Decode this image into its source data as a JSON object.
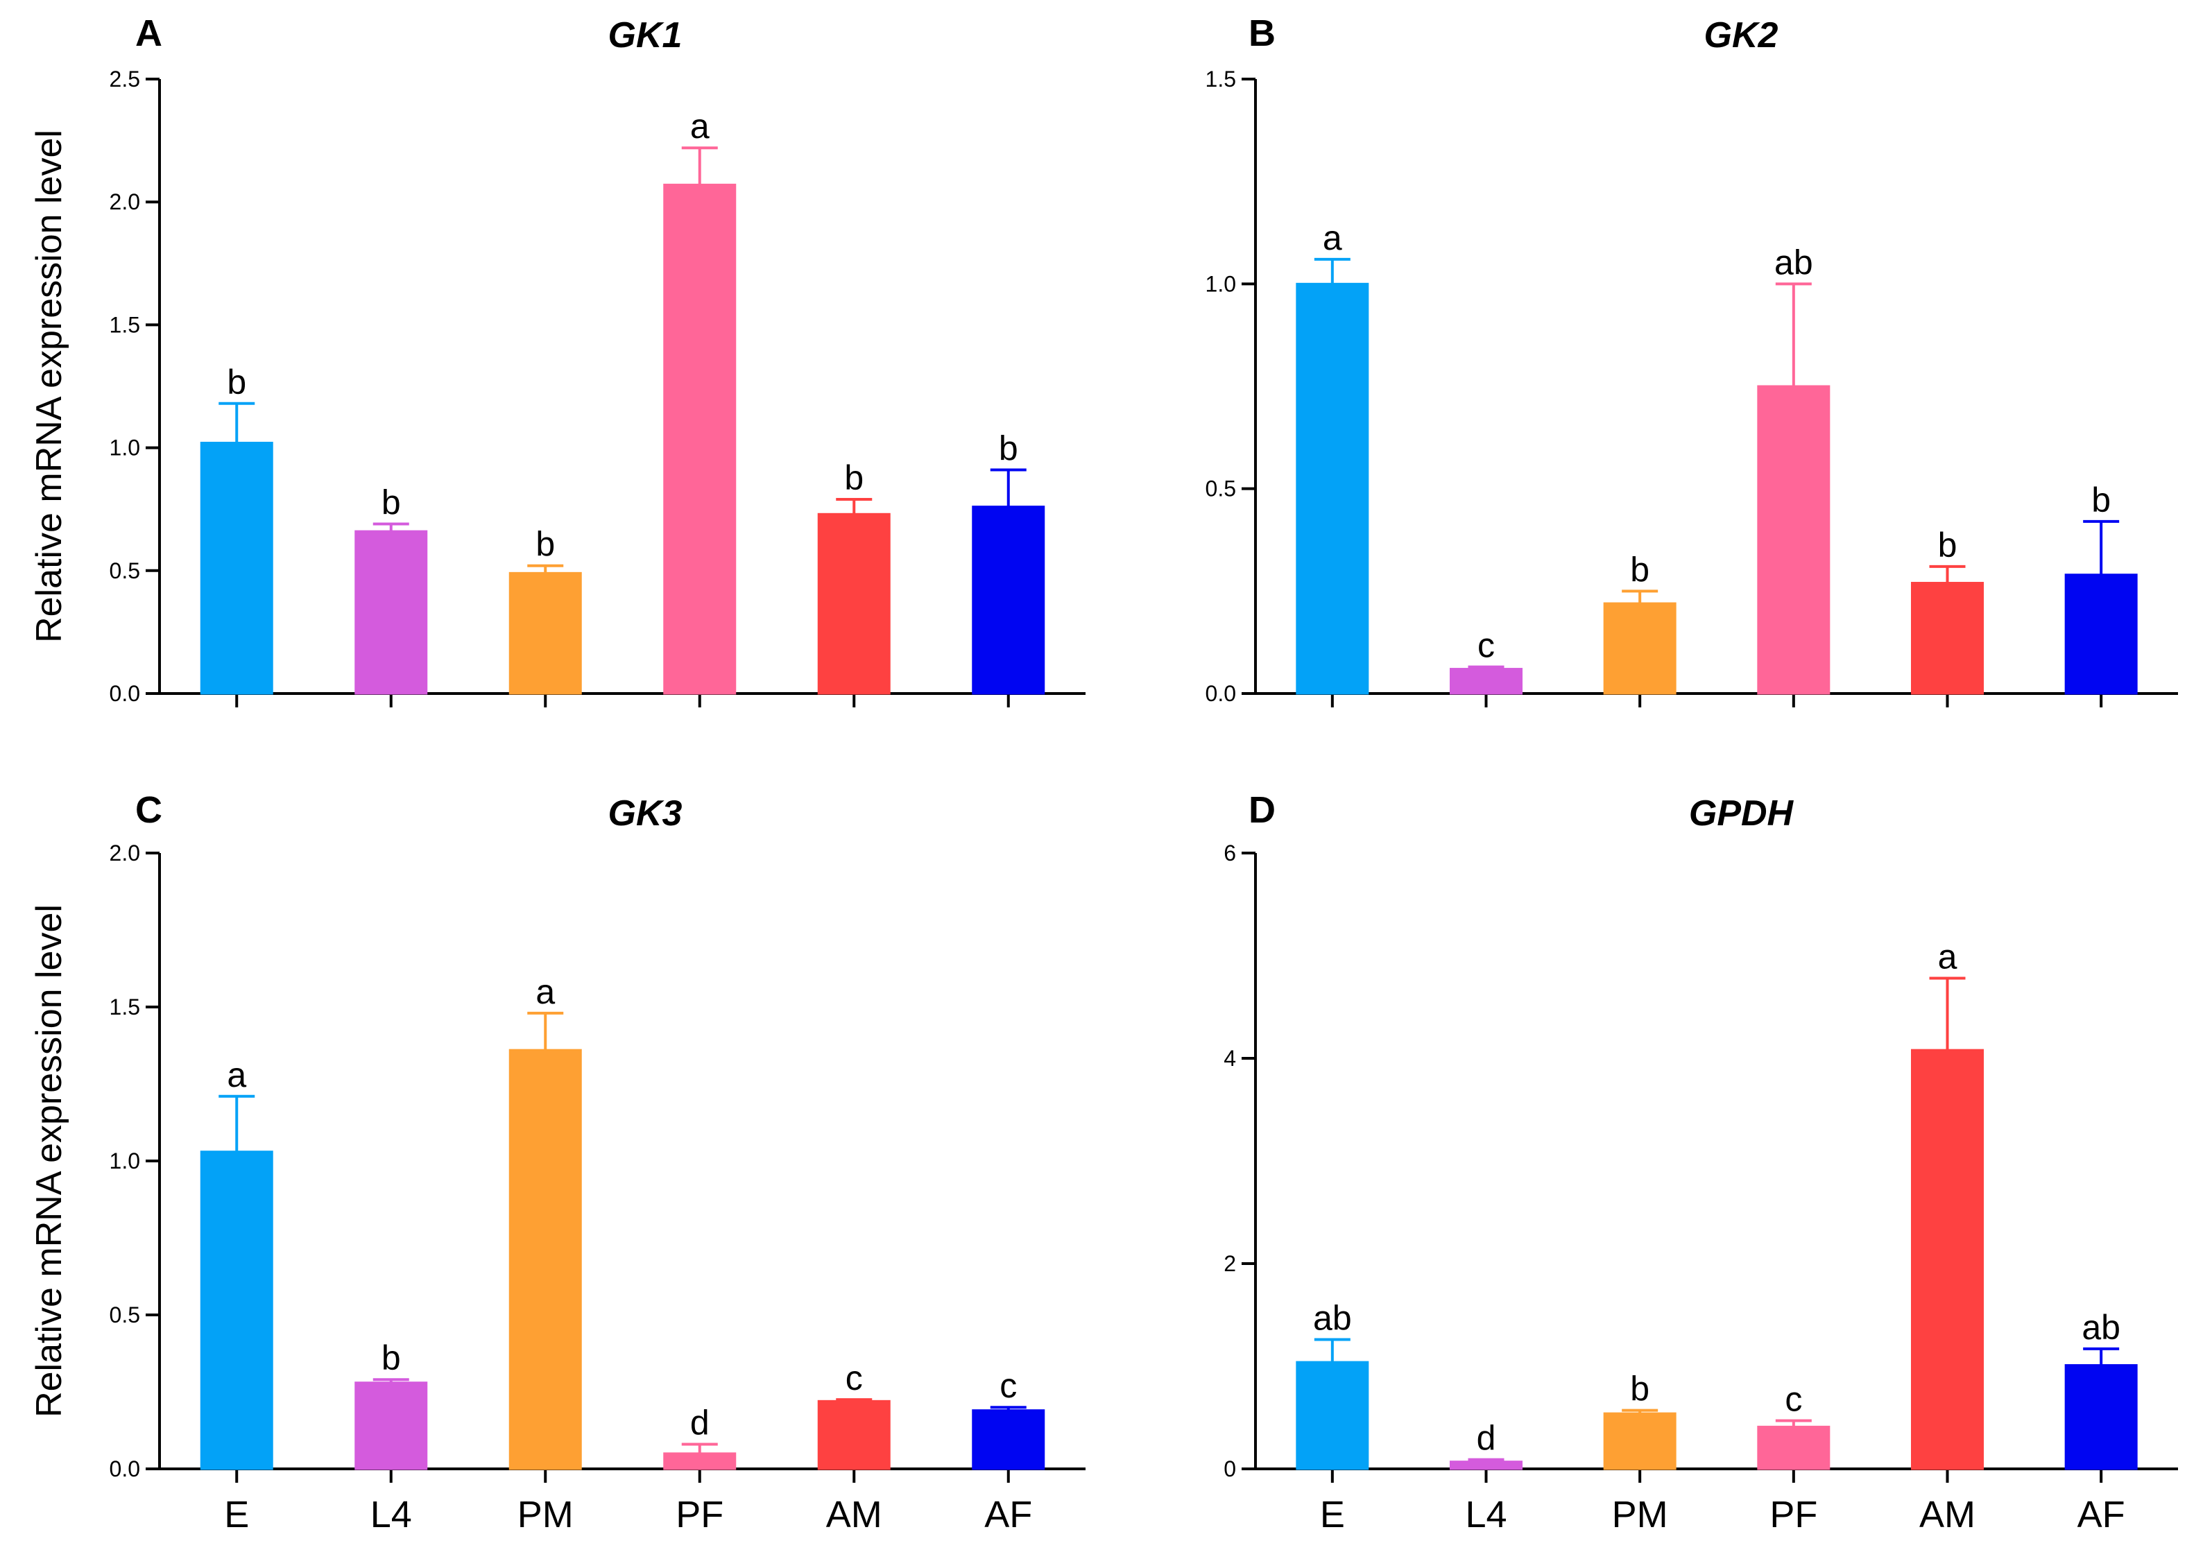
{
  "figure": {
    "y_axis_label": "Relative mRNA expression level",
    "categories": [
      "E",
      "L4",
      "PM",
      "PF",
      "AM",
      "AF"
    ],
    "colors": {
      "E": "#03A2F7",
      "L4": "#D45BDD",
      "PM": "#FEA033",
      "PF": "#FF6698",
      "AM": "#FE4141",
      "AF": "#0005F2"
    }
  },
  "chart_data": [
    {
      "panel": "A",
      "type": "bar",
      "title": "GK1",
      "ylabel": "Relative mRNA expression level",
      "xlabel": "",
      "categories": [
        "E",
        "L4",
        "PM",
        "PF",
        "AM",
        "AF"
      ],
      "values": [
        1.02,
        0.66,
        0.49,
        2.07,
        0.73,
        0.76
      ],
      "errors": [
        0.16,
        0.03,
        0.03,
        0.15,
        0.06,
        0.15
      ],
      "significance": [
        "b",
        "b",
        "b",
        "a",
        "b",
        "b"
      ],
      "ylim": [
        0,
        2.5
      ],
      "yticks": [
        0.0,
        0.5,
        1.0,
        1.5,
        2.0,
        2.5
      ],
      "ytick_labels": [
        "0.0",
        "0.5",
        "1.0",
        "1.5",
        "2.0",
        "2.5"
      ],
      "show_xtick_labels": false,
      "grid": false
    },
    {
      "panel": "B",
      "type": "bar",
      "title": "GK2",
      "ylabel": "",
      "xlabel": "",
      "categories": [
        "E",
        "L4",
        "PM",
        "PF",
        "AM",
        "AF"
      ],
      "values": [
        1.0,
        0.06,
        0.22,
        0.75,
        0.27,
        0.29
      ],
      "errors": [
        0.06,
        0.005,
        0.03,
        0.25,
        0.04,
        0.13
      ],
      "significance": [
        "a",
        "c",
        "b",
        "ab",
        "b",
        "b"
      ],
      "ylim": [
        0,
        1.5
      ],
      "yticks": [
        0.0,
        0.5,
        1.0,
        1.5
      ],
      "ytick_labels": [
        "0.0",
        "0.5",
        "1.0",
        "1.5"
      ],
      "show_xtick_labels": false,
      "grid": false
    },
    {
      "panel": "C",
      "type": "bar",
      "title": "GK3",
      "ylabel": "Relative mRNA expression level",
      "xlabel": "",
      "categories": [
        "E",
        "L4",
        "PM",
        "PF",
        "AM",
        "AF"
      ],
      "values": [
        1.03,
        0.28,
        1.36,
        0.05,
        0.22,
        0.19
      ],
      "errors": [
        0.18,
        0.01,
        0.12,
        0.03,
        0.005,
        0.01
      ],
      "significance": [
        "a",
        "b",
        "a",
        "d",
        "c",
        "c"
      ],
      "ylim": [
        0,
        2.0
      ],
      "yticks": [
        0.0,
        0.5,
        1.0,
        1.5,
        2.0
      ],
      "ytick_labels": [
        "0.0",
        "0.5",
        "1.0",
        "1.5",
        "2.0"
      ],
      "show_xtick_labels": true,
      "grid": false
    },
    {
      "panel": "D",
      "type": "bar",
      "title": "GPDH",
      "ylabel": "",
      "xlabel": "",
      "categories": [
        "E",
        "L4",
        "PM",
        "PF",
        "AM",
        "AF"
      ],
      "values": [
        1.04,
        0.07,
        0.54,
        0.41,
        4.08,
        1.01
      ],
      "errors": [
        0.22,
        0.02,
        0.03,
        0.06,
        0.7,
        0.16
      ],
      "significance": [
        "ab",
        "d",
        "b",
        "c",
        "a",
        "ab"
      ],
      "ylim": [
        0,
        6
      ],
      "yticks": [
        0,
        2,
        4,
        6
      ],
      "ytick_labels": [
        "0",
        "2",
        "4",
        "6"
      ],
      "show_xtick_labels": true,
      "grid": false
    }
  ]
}
